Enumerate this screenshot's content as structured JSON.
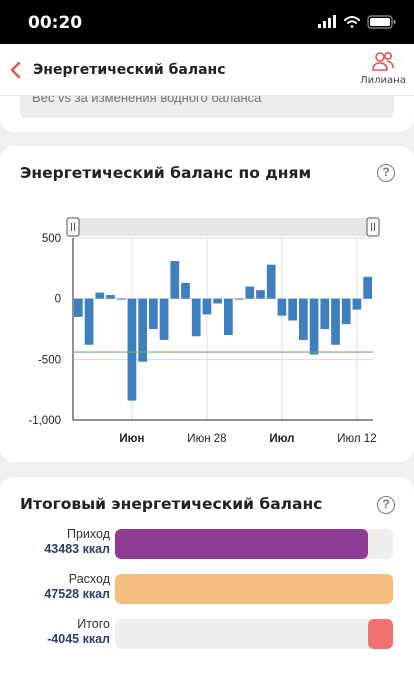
{
  "status": {
    "time": "00:20"
  },
  "nav": {
    "title": "Энергетический баланс",
    "user_label": "Лилиана"
  },
  "prev_card": {
    "field_text": "Вес vs за изменения водного баланса"
  },
  "chart_card": {
    "title": "Энергетический баланс по дням",
    "help": "?"
  },
  "chart_data": {
    "type": "bar",
    "title": "Энергетический баланс по дням",
    "xlabel": "",
    "ylabel": "",
    "ylim": [
      -1000,
      500
    ],
    "yticks": [
      500,
      0,
      -500,
      -1000
    ],
    "ytick_labels": [
      "500",
      "0",
      "-500",
      "-1,000"
    ],
    "x_labels": [
      {
        "label": "Июн",
        "bold": true,
        "index": 5.5
      },
      {
        "label": "Июн 28",
        "bold": false,
        "index": 12.5
      },
      {
        "label": "Июл",
        "bold": true,
        "index": 19.5
      },
      {
        "label": "Июл 12",
        "bold": false,
        "index": 26.5
      }
    ],
    "values": [
      -150,
      -380,
      50,
      30,
      -5,
      -840,
      -520,
      -250,
      -340,
      310,
      130,
      -310,
      -130,
      -40,
      -300,
      -5,
      100,
      70,
      280,
      -140,
      -180,
      -340,
      -460,
      -250,
      -380,
      -210,
      -90,
      180
    ],
    "reference_line": -440,
    "series_color": "#3f7fbf",
    "reference_color": "#6ab46a"
  },
  "total_card": {
    "title": "Итоговый энергетический баланс",
    "help": "?",
    "rows": [
      {
        "label": "Приход",
        "value": "43483 ккал",
        "fraction": 0.91,
        "color": "#8e3b95"
      },
      {
        "label": "Расход",
        "value": "47528 ккал",
        "fraction": 1.0,
        "color": "#f3bd7e"
      },
      {
        "label": "Итого",
        "value": "-4045 ккал",
        "fraction": 0.09,
        "color": "#f07172"
      }
    ]
  }
}
